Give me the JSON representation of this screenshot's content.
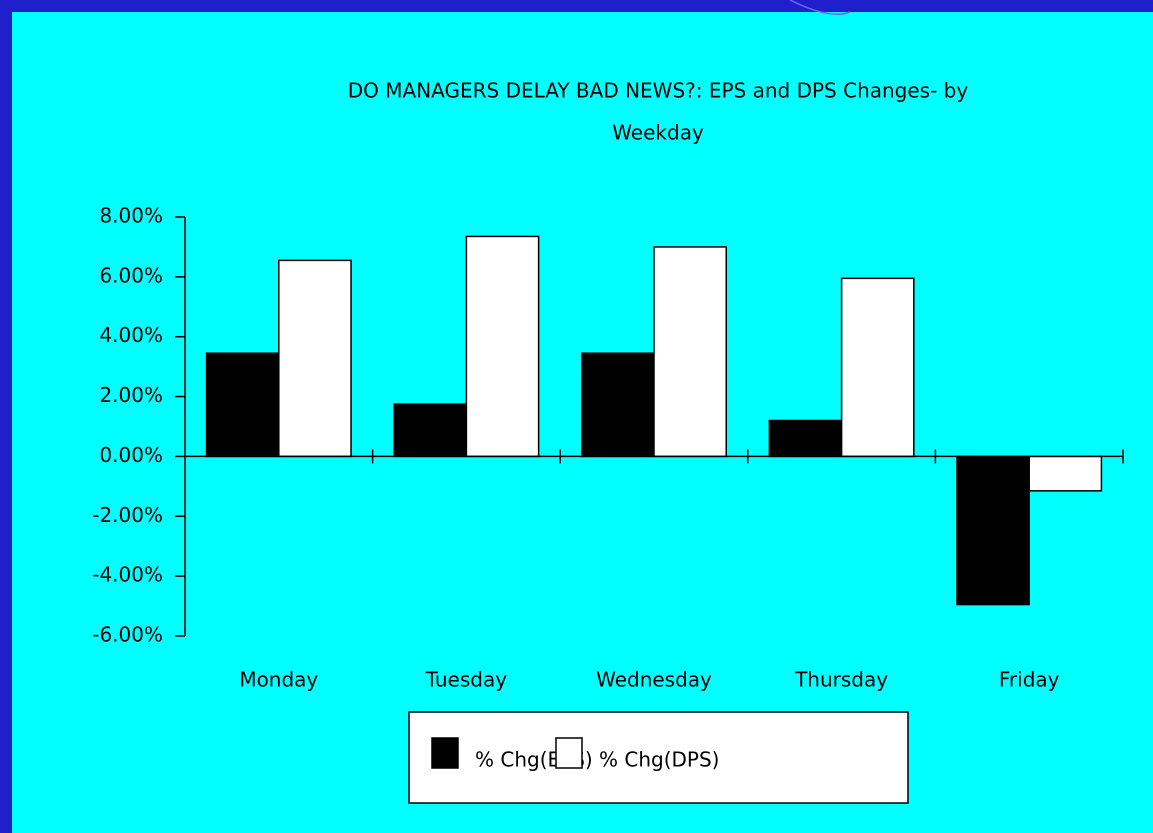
{
  "chart_data": {
    "type": "bar",
    "title": [
      "DO MANAGERS DELAY BAD NEWS?: EPS and DPS Changes- by",
      "Weekday"
    ],
    "categories": [
      "Monday",
      "Tuesday",
      "Wednesday",
      "Thursday",
      "Friday"
    ],
    "series": [
      {
        "name": "% Chg(EPS)",
        "color": "#000000",
        "values": [
          3.45,
          1.75,
          3.45,
          1.2,
          -4.95
        ]
      },
      {
        "name": "% Chg(DPS)",
        "color": "#ffffff",
        "values": [
          6.55,
          7.35,
          7.0,
          5.95,
          -1.15
        ]
      }
    ],
    "ylim": [
      -6,
      8
    ],
    "yticks": [
      {
        "value": 8,
        "label": "8.00%"
      },
      {
        "value": 6,
        "label": "6.00%"
      },
      {
        "value": 4,
        "label": "4.00%"
      },
      {
        "value": 2,
        "label": "2.00%"
      },
      {
        "value": 0,
        "label": "0.00%"
      },
      {
        "value": -2,
        "label": "-2.00%"
      },
      {
        "value": -4,
        "label": "-4.00%"
      },
      {
        "value": -6,
        "label": "-6.00%"
      }
    ],
    "legend": "bottom"
  }
}
